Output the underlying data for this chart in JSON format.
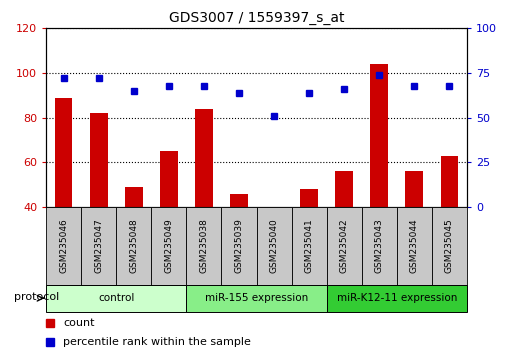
{
  "title": "GDS3007 / 1559397_s_at",
  "samples": [
    "GSM235046",
    "GSM235047",
    "GSM235048",
    "GSM235049",
    "GSM235038",
    "GSM235039",
    "GSM235040",
    "GSM235041",
    "GSM235042",
    "GSM235043",
    "GSM235044",
    "GSM235045"
  ],
  "count_values": [
    89,
    82,
    49,
    65,
    84,
    46,
    40,
    48,
    56,
    104,
    56,
    63
  ],
  "percentile_values": [
    72,
    72,
    65,
    68,
    68,
    64,
    51,
    64,
    66,
    74,
    68,
    68
  ],
  "groups": [
    {
      "label": "control",
      "start": 0,
      "end": 4,
      "color": "#ccffcc"
    },
    {
      "label": "miR-155 expression",
      "start": 4,
      "end": 8,
      "color": "#88ee88"
    },
    {
      "label": "miR-K12-11 expression",
      "start": 8,
      "end": 12,
      "color": "#33cc33"
    }
  ],
  "ylim_left": [
    40,
    120
  ],
  "ylim_right": [
    0,
    100
  ],
  "yticks_left": [
    40,
    60,
    80,
    100,
    120
  ],
  "yticks_right": [
    0,
    25,
    50,
    75,
    100
  ],
  "bar_color": "#cc0000",
  "dot_color": "#0000cc",
  "grid_color": "#000000",
  "bg_color": "#ffffff",
  "tick_label_color_left": "#cc0000",
  "tick_label_color_right": "#0000cc",
  "gray_bg": "#c8c8c8",
  "figure_width": 5.13,
  "figure_height": 3.54,
  "dpi": 100
}
